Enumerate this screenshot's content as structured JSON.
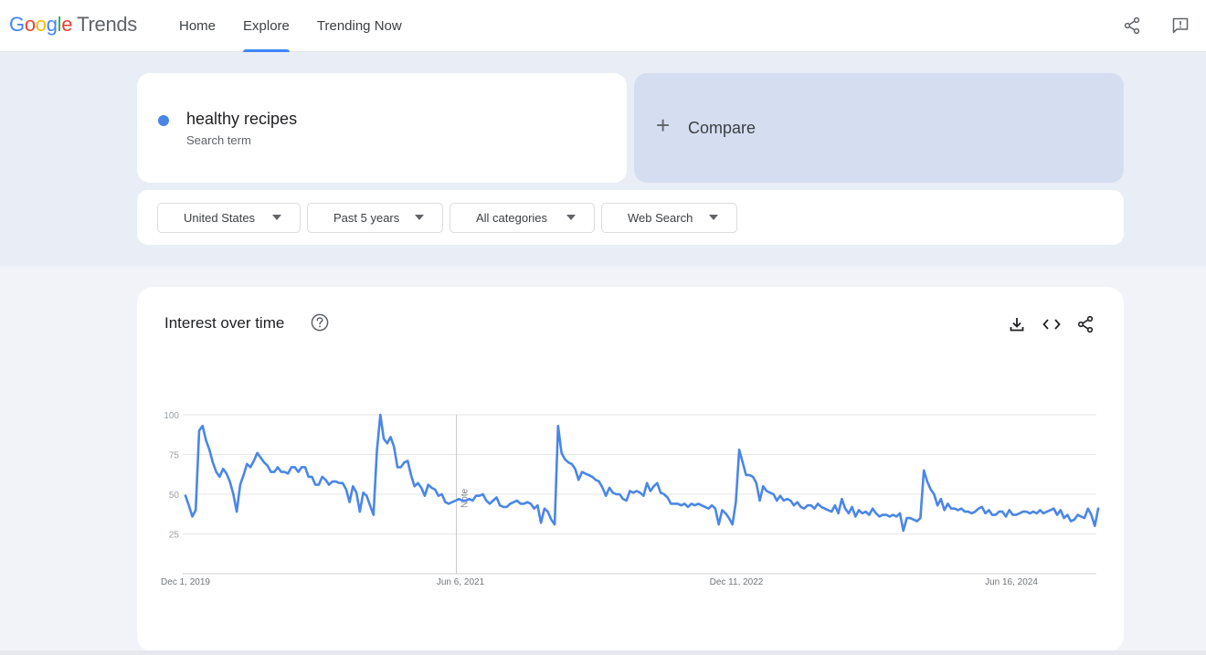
{
  "app": {
    "logo_google": [
      "G",
      "o",
      "o",
      "g",
      "l",
      "e"
    ],
    "logo_trends": "Trends"
  },
  "nav": {
    "tabs": [
      {
        "label": "Home"
      },
      {
        "label": "Explore",
        "active": true
      },
      {
        "label": "Trending Now"
      }
    ]
  },
  "header_icons": [
    "share-icon",
    "feedback-icon"
  ],
  "search": {
    "term": "healthy recipes",
    "term_type": "Search term",
    "term_color": "#4a86e8",
    "compare_label": "Compare"
  },
  "filters": [
    {
      "label": "United States"
    },
    {
      "label": "Past 5 years"
    },
    {
      "label": "All categories"
    },
    {
      "label": "Web Search"
    }
  ],
  "interest": {
    "title": "Interest over time",
    "tool_icons": [
      "download-icon",
      "embed-icon",
      "share-icon"
    ],
    "note_label": "Note"
  },
  "chart_data": {
    "type": "line",
    "title": "Interest over time",
    "xlabel": "",
    "ylabel": "",
    "ylim": [
      0,
      100
    ],
    "yticks": [
      25,
      50,
      75,
      100
    ],
    "xtick_labels": [
      "Dec 1, 2019",
      "Jun 6, 2021",
      "Dec 11, 2022",
      "Jun 16, 2024"
    ],
    "x_start": "Dec 1, 2019",
    "x_interval": "week",
    "grid": true,
    "series_color": "#4a86e8",
    "note_at_index": 79,
    "series": [
      {
        "name": "healthy recipes",
        "values": [
          49,
          43,
          36,
          40,
          90,
          93,
          84,
          78,
          70,
          64,
          61,
          66,
          63,
          58,
          50,
          39,
          56,
          62,
          69,
          67,
          71,
          76,
          73,
          70,
          68,
          64,
          64,
          67,
          64,
          64,
          63,
          67,
          67,
          64,
          67,
          67,
          61,
          61,
          56,
          56,
          61,
          59,
          56,
          58,
          58,
          57,
          57,
          53,
          45,
          55,
          51,
          39,
          51,
          49,
          43,
          37,
          77,
          100,
          85,
          82,
          86,
          80,
          67,
          67,
          70,
          71,
          62,
          55,
          57,
          54,
          49,
          56,
          54,
          53,
          49,
          50,
          45,
          44,
          45,
          46,
          47,
          46,
          46,
          47,
          46,
          49,
          49,
          50,
          46,
          44,
          46,
          48,
          43,
          42,
          42,
          44,
          45,
          46,
          44,
          44,
          45,
          44,
          41,
          43,
          32,
          41,
          39,
          34,
          31,
          93,
          76,
          72,
          70,
          69,
          66,
          59,
          64,
          63,
          62,
          61,
          59,
          58,
          54,
          49,
          54,
          51,
          50,
          50,
          47,
          46,
          52,
          51,
          52,
          51,
          49,
          57,
          52,
          55,
          57,
          51,
          50,
          48,
          44,
          44,
          44,
          43,
          44,
          42,
          44,
          43,
          44,
          43,
          42,
          41,
          43,
          41,
          31,
          40,
          38,
          35,
          31,
          45,
          78,
          70,
          62,
          62,
          61,
          57,
          46,
          55,
          52,
          51,
          50,
          46,
          49,
          46,
          47,
          46,
          43,
          45,
          42,
          41,
          43,
          43,
          41,
          44,
          42,
          41,
          40,
          39,
          43,
          38,
          47,
          41,
          38,
          42,
          36,
          40,
          38,
          39,
          37,
          41,
          38,
          36,
          37,
          37,
          36,
          37,
          36,
          38,
          27,
          35,
          35,
          34,
          33,
          35,
          65,
          58,
          53,
          50,
          43,
          47,
          40,
          44,
          41,
          41,
          40,
          41,
          39,
          39,
          38,
          39,
          41,
          42,
          38,
          40,
          37,
          37,
          39,
          39,
          36,
          40,
          37,
          37,
          38,
          39,
          39,
          38,
          39,
          38,
          40,
          38,
          39,
          40,
          41,
          37,
          40,
          35,
          37,
          33,
          34,
          37,
          36,
          35,
          41,
          37,
          30,
          41
        ]
      }
    ]
  }
}
